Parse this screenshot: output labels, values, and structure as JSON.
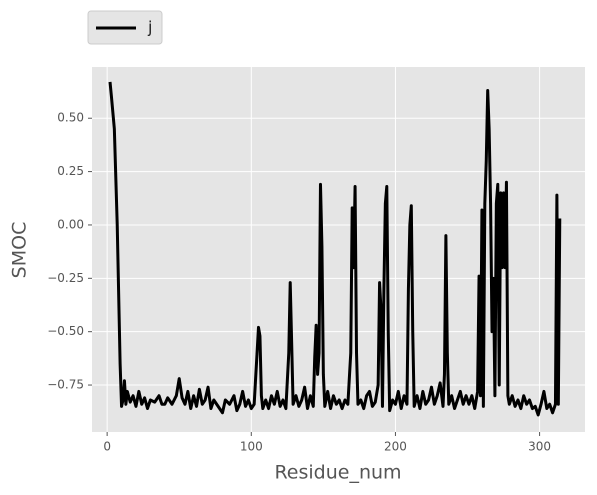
{
  "chart_data": {
    "type": "line",
    "xlabel": "Residue_num",
    "ylabel": "SMOC",
    "x": [
      2,
      3,
      5,
      7,
      9,
      10,
      11,
      12,
      13,
      14,
      16,
      18,
      20,
      22,
      24,
      26,
      28,
      30,
      33,
      36,
      38,
      40,
      42,
      45,
      48,
      50,
      52,
      54,
      56,
      58,
      60,
      62,
      64,
      66,
      68,
      70,
      72,
      74,
      76,
      78,
      80,
      82,
      85,
      88,
      90,
      92,
      94,
      96,
      98,
      100,
      102,
      104,
      105,
      106,
      107,
      108,
      110,
      112,
      114,
      116,
      118,
      120,
      122,
      124,
      126,
      127,
      128,
      129,
      131,
      133,
      135,
      137,
      139,
      141,
      143,
      144,
      145,
      146,
      147,
      148,
      149,
      150,
      151,
      153,
      155,
      157,
      159,
      161,
      163,
      165,
      167,
      169,
      170,
      171,
      172,
      173,
      174,
      176,
      178,
      180,
      182,
      184,
      186,
      188,
      189,
      190,
      191,
      192,
      193,
      194,
      195,
      196,
      198,
      200,
      202,
      204,
      206,
      208,
      209,
      210,
      211,
      212,
      213,
      215,
      217,
      219,
      221,
      223,
      225,
      227,
      229,
      231,
      233,
      234,
      235,
      236,
      237,
      239,
      241,
      243,
      245,
      247,
      249,
      251,
      253,
      255,
      257,
      258,
      259,
      260,
      261,
      262,
      263,
      264,
      265,
      266,
      267,
      268,
      269,
      270,
      271,
      272,
      273,
      274,
      275,
      276,
      277,
      278,
      279,
      281,
      283,
      285,
      287,
      289,
      291,
      293,
      295,
      297,
      299,
      301,
      303,
      305,
      307,
      309,
      311,
      312,
      313,
      314
    ],
    "series": [
      {
        "name": "j",
        "color": "#000000",
        "values": [
          0.67,
          0.6,
          0.45,
          0,
          -0.65,
          -0.85,
          -0.82,
          -0.73,
          -0.84,
          -0.78,
          -0.83,
          -0.8,
          -0.85,
          -0.78,
          -0.84,
          -0.81,
          -0.86,
          -0.82,
          -0.83,
          -0.8,
          -0.84,
          -0.84,
          -0.81,
          -0.84,
          -0.8,
          -0.72,
          -0.81,
          -0.84,
          -0.78,
          -0.86,
          -0.8,
          -0.85,
          -0.77,
          -0.84,
          -0.82,
          -0.76,
          -0.86,
          -0.82,
          -0.84,
          -0.86,
          -0.88,
          -0.82,
          -0.84,
          -0.8,
          -0.87,
          -0.84,
          -0.78,
          -0.85,
          -0.82,
          -0.86,
          -0.84,
          -0.6,
          -0.48,
          -0.52,
          -0.8,
          -0.86,
          -0.82,
          -0.86,
          -0.8,
          -0.84,
          -0.78,
          -0.85,
          -0.82,
          -0.86,
          -0.6,
          -0.27,
          -0.55,
          -0.84,
          -0.8,
          -0.85,
          -0.82,
          -0.76,
          -0.86,
          -0.8,
          -0.85,
          -0.62,
          -0.47,
          -0.7,
          -0.6,
          0.19,
          -0.1,
          -0.7,
          -0.85,
          -0.78,
          -0.86,
          -0.8,
          -0.84,
          -0.82,
          -0.86,
          -0.82,
          -0.84,
          -0.6,
          0.08,
          -0.2,
          0.18,
          -0.6,
          -0.84,
          -0.82,
          -0.86,
          -0.8,
          -0.78,
          -0.85,
          -0.83,
          -0.75,
          -0.27,
          -0.4,
          -0.85,
          -0.3,
          0.1,
          0.18,
          -0.5,
          -0.87,
          -0.82,
          -0.84,
          -0.78,
          -0.86,
          -0.8,
          -0.84,
          -0.3,
          0,
          0.09,
          -0.5,
          -0.85,
          -0.8,
          -0.86,
          -0.78,
          -0.84,
          -0.82,
          -0.76,
          -0.84,
          -0.8,
          -0.74,
          -0.85,
          -0.7,
          -0.05,
          -0.6,
          -0.84,
          -0.8,
          -0.86,
          -0.82,
          -0.78,
          -0.84,
          -0.8,
          -0.84,
          -0.8,
          -0.86,
          -0.78,
          -0.24,
          -0.8,
          0.07,
          -0.85,
          0.1,
          0.3,
          0.63,
          0.45,
          0.1,
          -0.5,
          -0.25,
          -0.8,
          0.1,
          0.19,
          -0.75,
          0.15,
          -0.2,
          0.15,
          -0.2,
          0.2,
          -0.8,
          -0.84,
          -0.8,
          -0.85,
          -0.82,
          -0.86,
          -0.8,
          -0.84,
          -0.82,
          -0.86,
          -0.85,
          -0.89,
          -0.84,
          -0.78,
          -0.86,
          -0.84,
          -0.88,
          -0.84,
          0.14,
          -0.84,
          0.03
        ]
      }
    ],
    "xlim": [
      -10.5,
      331.5
    ],
    "xticks": [
      0,
      100,
      200,
      300
    ],
    "ylim": [
      -0.97,
      0.74
    ],
    "yticks": [
      {
        "value": -0.75,
        "label": "−0.75"
      },
      {
        "value": -0.5,
        "label": "−0.50"
      },
      {
        "value": -0.25,
        "label": "−0.25"
      },
      {
        "value": 0,
        "label": "0.00"
      },
      {
        "value": 0.25,
        "label": "0.25"
      },
      {
        "value": 0.5,
        "label": "0.50"
      }
    ],
    "grid": true,
    "legend": "above-left"
  }
}
